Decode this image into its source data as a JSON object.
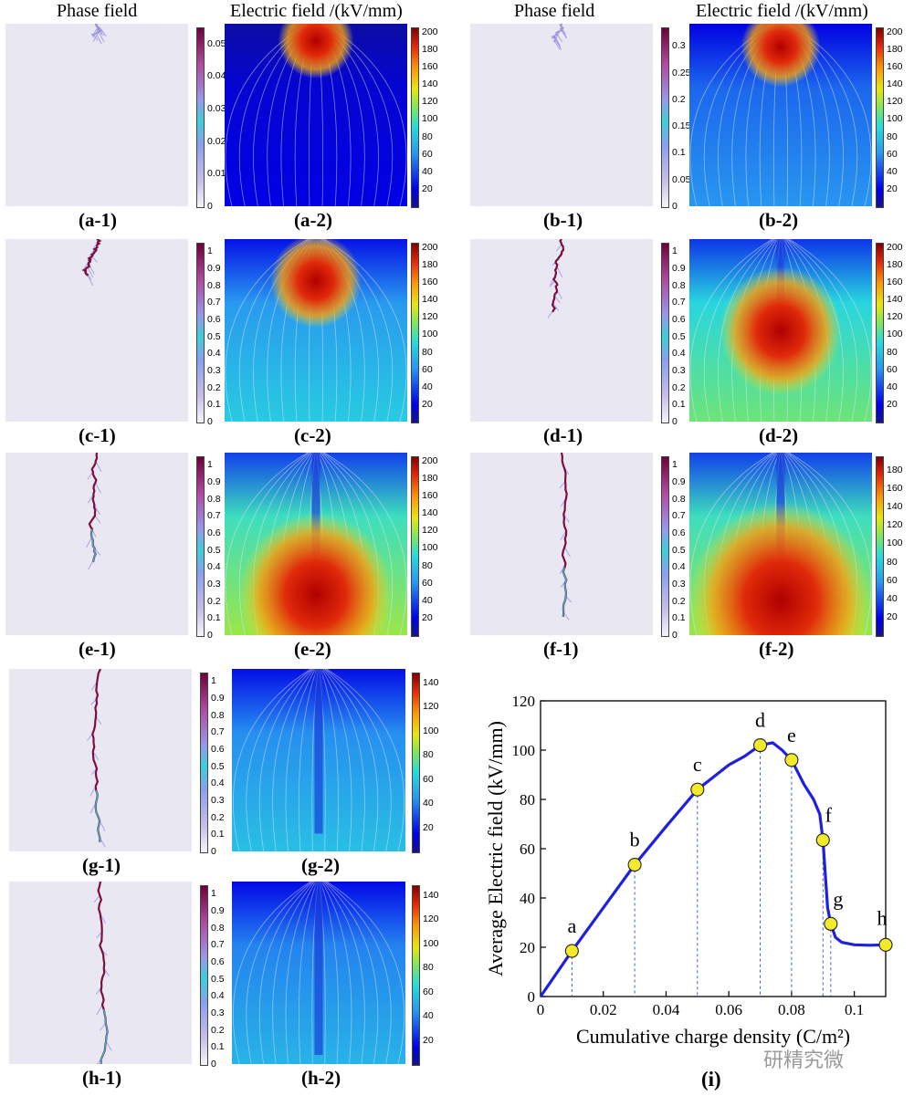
{
  "headers": {
    "phase_field": "Phase field",
    "electric_field": "Electric field /(kV/mm)"
  },
  "panels": [
    {
      "id": "a",
      "cap1": "(a-1)",
      "cap2": "(a-2)",
      "phase_ticks": [
        "0",
        "0.01",
        "0.02",
        "0.03",
        "0.04",
        "0.05"
      ],
      "phase_max": 0.055,
      "field_ticks": [
        "20",
        "40",
        "60",
        "80",
        "100",
        "120",
        "140",
        "160",
        "180",
        "200"
      ],
      "field_max": 205,
      "crack_len": 0.06,
      "hot_y": 0.02,
      "bg_level": 0.12
    },
    {
      "id": "b",
      "cap1": "(b-1)",
      "cap2": "(b-2)",
      "phase_ticks": [
        "0",
        "0.05",
        "0.1",
        "0.15",
        "0.2",
        "0.25",
        "0.3"
      ],
      "phase_max": 0.335,
      "field_ticks": [
        "20",
        "40",
        "60",
        "80",
        "100",
        "120",
        "140",
        "160",
        "180",
        "200"
      ],
      "field_max": 205,
      "crack_len": 0.1,
      "hot_y": 0.05,
      "bg_level": 0.33
    },
    {
      "id": "c",
      "cap1": "(c-1)",
      "cap2": "(c-2)",
      "phase_ticks": [
        "0",
        "0.1",
        "0.2",
        "0.3",
        "0.4",
        "0.5",
        "0.6",
        "0.7",
        "0.8",
        "0.9",
        "1"
      ],
      "phase_max": 1.05,
      "field_ticks": [
        "20",
        "40",
        "60",
        "80",
        "100",
        "120",
        "140",
        "160",
        "180",
        "200"
      ],
      "field_max": 205,
      "crack_len": 0.2,
      "hot_y": 0.14,
      "bg_level": 0.42
    },
    {
      "id": "d",
      "cap1": "(d-1)",
      "cap2": "(d-2)",
      "phase_ticks": [
        "0",
        "0.1",
        "0.2",
        "0.3",
        "0.4",
        "0.5",
        "0.6",
        "0.7",
        "0.8",
        "0.9",
        "1"
      ],
      "phase_max": 1.05,
      "field_ticks": [
        "20",
        "40",
        "60",
        "80",
        "100",
        "120",
        "140",
        "160",
        "180",
        "200"
      ],
      "field_max": 205,
      "crack_len": 0.4,
      "hot_y": 0.38,
      "bg_level": 0.55
    },
    {
      "id": "e",
      "cap1": "(e-1)",
      "cap2": "(e-2)",
      "phase_ticks": [
        "0",
        "0.1",
        "0.2",
        "0.3",
        "0.4",
        "0.5",
        "0.6",
        "0.7",
        "0.8",
        "0.9",
        "1"
      ],
      "phase_max": 1.05,
      "field_ticks": [
        "20",
        "40",
        "60",
        "80",
        "100",
        "120",
        "140",
        "160",
        "180",
        "200"
      ],
      "field_max": 205,
      "crack_len": 0.6,
      "hot_y": 0.62,
      "bg_level": 0.6
    },
    {
      "id": "f",
      "cap1": "(f-1)",
      "cap2": "(f-2)",
      "phase_ticks": [
        "0",
        "0.1",
        "0.2",
        "0.3",
        "0.4",
        "0.5",
        "0.6",
        "0.7",
        "0.8",
        "0.9",
        "1"
      ],
      "phase_max": 1.05,
      "field_ticks": [
        "20",
        "40",
        "60",
        "80",
        "100",
        "120",
        "140",
        "160",
        "180"
      ],
      "field_max": 195,
      "crack_len": 0.9,
      "hot_y": 0.85,
      "bg_level": 0.6
    },
    {
      "id": "g",
      "cap1": "(g-1)",
      "cap2": "(g-2)",
      "phase_ticks": [
        "0",
        "0.1",
        "0.2",
        "0.3",
        "0.4",
        "0.5",
        "0.6",
        "0.7",
        "0.8",
        "0.9",
        "1"
      ],
      "phase_max": 1.05,
      "field_ticks": [
        "20",
        "40",
        "60",
        "80",
        "100",
        "120",
        "140"
      ],
      "field_max": 148,
      "crack_len": 0.95,
      "hot_y": -1,
      "bg_level": 0.4
    },
    {
      "id": "h",
      "cap1": "(h-1)",
      "cap2": "(h-2)",
      "phase_ticks": [
        "0",
        "0.1",
        "0.2",
        "0.3",
        "0.4",
        "0.5",
        "0.6",
        "0.7",
        "0.8",
        "0.9",
        "1"
      ],
      "phase_max": 1.05,
      "field_ticks": [
        "20",
        "40",
        "60",
        "80",
        "100",
        "120",
        "140"
      ],
      "field_max": 148,
      "crack_len": 1.0,
      "hot_y": -1,
      "bg_level": 0.38
    }
  ],
  "chart_data": {
    "type": "line",
    "caption": "(i)",
    "xlabel": "Cumulative charge density (C/m²)",
    "ylabel": "Average Electric field (kV/mm)",
    "xlim": [
      0,
      0.11
    ],
    "ylim": [
      0,
      120
    ],
    "xticks": [
      "0",
      "0.02",
      "0.04",
      "0.06",
      "0.08",
      "0.1"
    ],
    "xtick_values": [
      0,
      0.02,
      0.04,
      0.06,
      0.08,
      0.1
    ],
    "yticks": [
      "0",
      "20",
      "40",
      "60",
      "80",
      "100",
      "120"
    ],
    "ytick_values": [
      0,
      20,
      40,
      60,
      80,
      100,
      120
    ],
    "curve": [
      [
        0,
        0
      ],
      [
        0.01,
        18.5
      ],
      [
        0.02,
        36
      ],
      [
        0.03,
        53.5
      ],
      [
        0.04,
        69
      ],
      [
        0.05,
        84
      ],
      [
        0.055,
        89
      ],
      [
        0.06,
        94
      ],
      [
        0.065,
        97.5
      ],
      [
        0.07,
        102
      ],
      [
        0.074,
        103
      ],
      [
        0.077,
        100
      ],
      [
        0.08,
        96
      ],
      [
        0.082,
        91
      ],
      [
        0.084,
        86
      ],
      [
        0.087,
        80
      ],
      [
        0.089,
        74
      ],
      [
        0.09,
        63.5
      ],
      [
        0.091,
        45
      ],
      [
        0.0915,
        36
      ],
      [
        0.0925,
        29.5
      ],
      [
        0.094,
        24
      ],
      [
        0.096,
        22
      ],
      [
        0.1,
        21
      ],
      [
        0.105,
        20.8
      ],
      [
        0.11,
        21
      ]
    ],
    "points": [
      {
        "label": "a",
        "x": 0.01,
        "y": 18.5
      },
      {
        "label": "b",
        "x": 0.03,
        "y": 53.5
      },
      {
        "label": "c",
        "x": 0.05,
        "y": 84
      },
      {
        "label": "d",
        "x": 0.07,
        "y": 102
      },
      {
        "label": "e",
        "x": 0.08,
        "y": 96
      },
      {
        "label": "f",
        "x": 0.09,
        "y": 63.5
      },
      {
        "label": "g",
        "x": 0.0925,
        "y": 29.5
      },
      {
        "label": "h",
        "x": 0.11,
        "y": 21
      }
    ],
    "line_color": "#1f1fe0",
    "marker_color": "#f2ea2a"
  },
  "watermark": "研精究微"
}
